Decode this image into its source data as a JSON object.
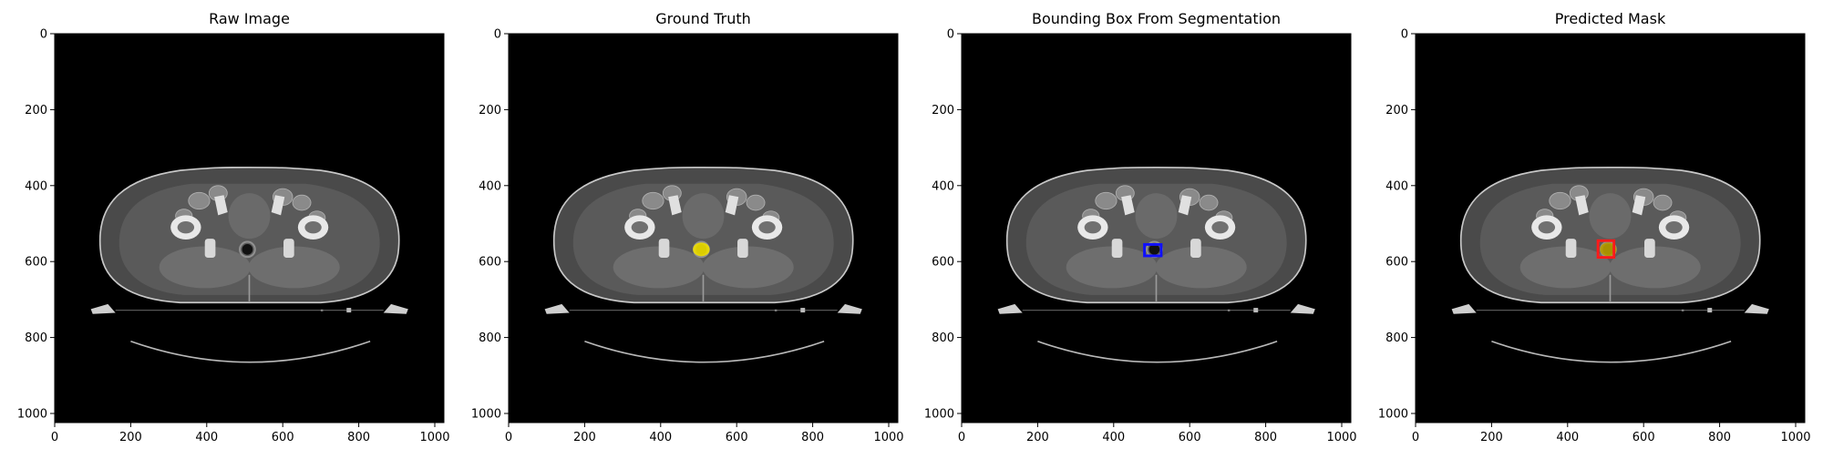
{
  "figure": {
    "panels": [
      {
        "title": "Raw Image",
        "overlay": "none"
      },
      {
        "title": "Ground Truth",
        "overlay": "mask",
        "mask_color": "#f2e200"
      },
      {
        "title": "Bounding Box From Segmentation",
        "overlay": "box",
        "box_color": "#1010ff"
      },
      {
        "title": "Predicted Mask",
        "overlay": "mask+box",
        "mask_color": "#b8a000",
        "box_color": "#ff1a1a"
      }
    ],
    "x_ticks": [
      "0",
      "200",
      "400",
      "600",
      "800",
      "1000"
    ],
    "y_ticks": [
      "0",
      "200",
      "400",
      "600",
      "800",
      "1000"
    ],
    "image_size": [
      1024,
      1024
    ],
    "image_type": "axial pelvic CT slice"
  }
}
